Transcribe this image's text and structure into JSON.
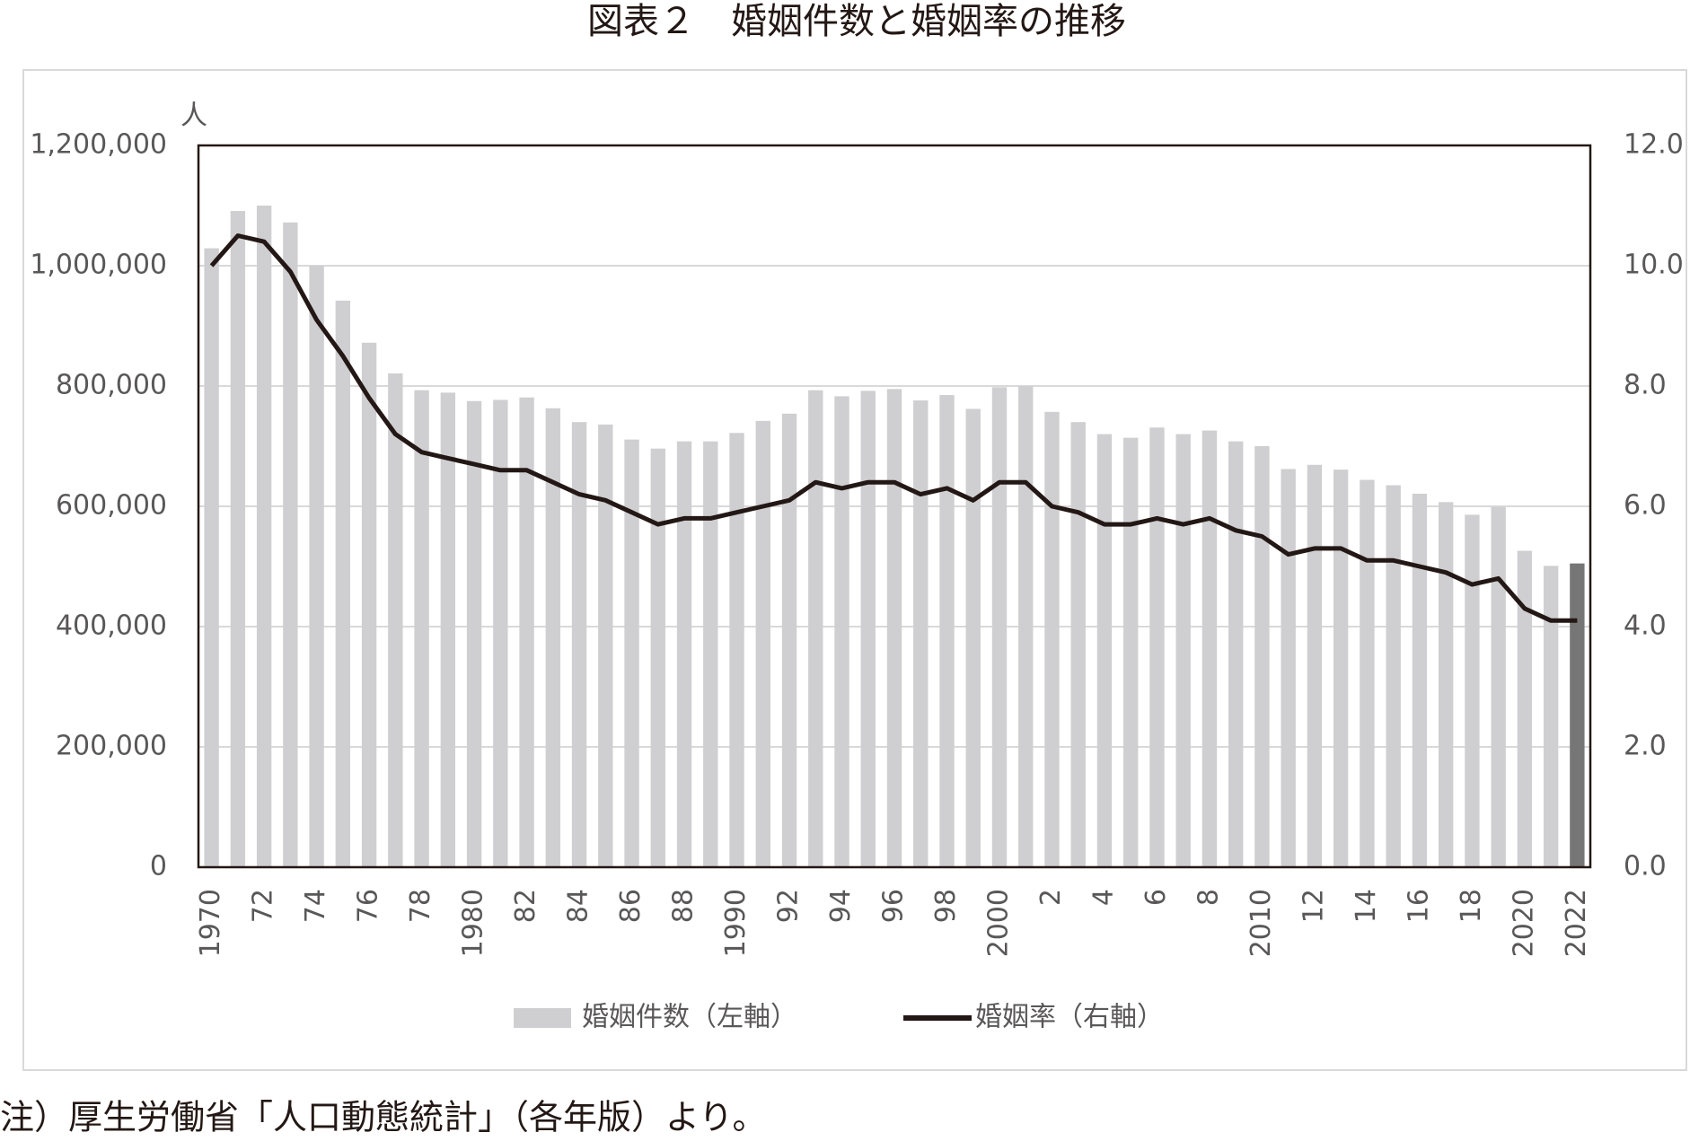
{
  "title": "図表２　婚姻件数と婚姻率の推移",
  "note": "注）厚生労働省「人口動態統計」（各年版）より。",
  "chart_data": {
    "type": "bar-line",
    "y_unit": "人",
    "categories": [
      "1970",
      null,
      "72",
      null,
      "74",
      null,
      "76",
      null,
      "78",
      null,
      "1980",
      null,
      "82",
      null,
      "84",
      null,
      "86",
      null,
      "88",
      null,
      "1990",
      null,
      "92",
      null,
      "94",
      null,
      "96",
      null,
      "98",
      null,
      "2000",
      null,
      "2",
      null,
      "4",
      null,
      "6",
      null,
      "8",
      null,
      "2010",
      null,
      "12",
      null,
      "14",
      null,
      "16",
      null,
      "18",
      null,
      "2020",
      null,
      "2022"
    ],
    "series": [
      {
        "name": "婚姻件数（左軸）",
        "type": "bar",
        "color": "#cfcfd1",
        "colors": [
          "#cfcfd1",
          "#cfcfd1",
          "#cfcfd1",
          "#cfcfd1",
          "#cfcfd1",
          "#cfcfd1",
          "#cfcfd1",
          "#cfcfd1",
          "#cfcfd1",
          "#cfcfd1",
          "#cfcfd1",
          "#cfcfd1",
          "#cfcfd1",
          "#cfcfd1",
          "#cfcfd1",
          "#cfcfd1",
          "#cfcfd1",
          "#cfcfd1",
          "#cfcfd1",
          "#cfcfd1",
          "#cfcfd1",
          "#cfcfd1",
          "#cfcfd1",
          "#cfcfd1",
          "#cfcfd1",
          "#cfcfd1",
          "#cfcfd1",
          "#cfcfd1",
          "#cfcfd1",
          "#cfcfd1",
          "#cfcfd1",
          "#cfcfd1",
          "#cfcfd1",
          "#cfcfd1",
          "#cfcfd1",
          "#cfcfd1",
          "#cfcfd1",
          "#cfcfd1",
          "#cfcfd1",
          "#cfcfd1",
          "#cfcfd1",
          "#cfcfd1",
          "#cfcfd1",
          "#cfcfd1",
          "#cfcfd1",
          "#cfcfd1",
          "#cfcfd1",
          "#cfcfd1",
          "#cfcfd1",
          "#cfcfd1",
          "#cfcfd1",
          "#cfcfd1",
          "#767676"
        ],
        "values": [
          1029000,
          1091000,
          1100000,
          1072000,
          1000000,
          942000,
          872000,
          821000,
          793000,
          789000,
          775000,
          777000,
          781000,
          763000,
          740000,
          736000,
          711000,
          696000,
          708000,
          708000,
          722000,
          742000,
          754000,
          793000,
          783000,
          792000,
          795000,
          776000,
          785000,
          762000,
          798000,
          800000,
          757000,
          740000,
          720000,
          714000,
          731000,
          720000,
          726000,
          708000,
          700000,
          662000,
          669000,
          661000,
          644000,
          635000,
          621000,
          607000,
          586000,
          599000,
          526000,
          501000,
          505000
        ]
      },
      {
        "name": "婚姻率（右軸）",
        "type": "line",
        "axis": "y2",
        "color": "#231815",
        "values": [
          10.0,
          10.5,
          10.4,
          9.9,
          9.1,
          8.5,
          7.8,
          7.2,
          6.9,
          6.8,
          6.7,
          6.6,
          6.6,
          6.4,
          6.2,
          6.1,
          5.9,
          5.7,
          5.8,
          5.8,
          5.9,
          6.0,
          6.1,
          6.4,
          6.3,
          6.4,
          6.4,
          6.2,
          6.3,
          6.1,
          6.4,
          6.4,
          6.0,
          5.9,
          5.7,
          5.7,
          5.8,
          5.7,
          5.8,
          5.6,
          5.5,
          5.2,
          5.3,
          5.3,
          5.1,
          5.1,
          5.0,
          4.9,
          4.7,
          4.8,
          4.3,
          4.1,
          4.1
        ]
      }
    ],
    "ylim": [
      0,
      1200000
    ],
    "yticks": [
      0,
      {
        "value": 200000,
        "label": "200,000"
      },
      {
        "value": 400000,
        "label": "400,000"
      },
      {
        "value": 600000,
        "label": "600,000"
      },
      {
        "value": 800000,
        "label": "800,000"
      },
      {
        "value": 1000000,
        "label": "1,000,000"
      },
      {
        "value": 1200000,
        "label": "1,200,000"
      }
    ],
    "y2lim": [
      0,
      12
    ],
    "y2ticks": [
      {
        "value": 0,
        "label": "0.0"
      },
      {
        "value": 2,
        "label": "2.0"
      },
      {
        "value": 4,
        "label": "4.0"
      },
      {
        "value": 6,
        "label": "6.0"
      },
      {
        "value": 8,
        "label": "8.0"
      },
      {
        "value": 10,
        "label": "10.0"
      },
      {
        "value": 12,
        "label": "12.0"
      }
    ],
    "grid": true,
    "legend": "bottom"
  }
}
